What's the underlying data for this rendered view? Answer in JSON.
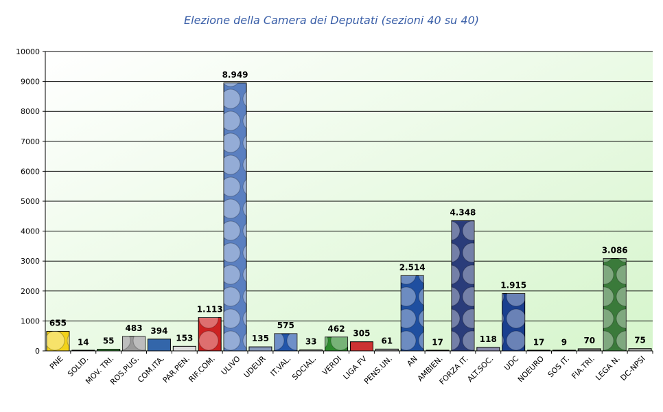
{
  "chart_data": {
    "type": "bar",
    "title": "Elezione della Camera dei Deputati (sezioni 40 su 40)",
    "xlabel": "",
    "ylabel": "",
    "ylim": [
      0,
      10000
    ],
    "yticks": [
      0,
      1000,
      2000,
      3000,
      4000,
      5000,
      6000,
      7000,
      8000,
      9000,
      10000
    ],
    "grid": true,
    "categories": [
      "PNE",
      "SOLID.",
      "MOV. TRI.",
      "ROS.PUG.",
      "COM.ITA.",
      "PAR.PEN.",
      "RIF.COM.",
      "ULIVO",
      "UDEUR",
      "IT.VAL.",
      "SOCIAL.",
      "VERDI",
      "LIGA FV",
      "PENS.UN.",
      "AN",
      "AMBIEN.",
      "FORZA IT.",
      "ALT.SOC.",
      "UDC",
      "NOEURO",
      "SOS IT.",
      "FIA.TRI.",
      "LEGA N.",
      "DC-NPSI"
    ],
    "values": [
      655,
      14,
      55,
      483,
      394,
      153,
      1113,
      8949,
      135,
      575,
      33,
      462,
      305,
      61,
      2514,
      17,
      4348,
      118,
      1915,
      17,
      9,
      70,
      3086,
      75
    ],
    "data_labels": [
      "655",
      "14",
      "55",
      "483",
      "394",
      "153",
      "1.113",
      "8.949",
      "135",
      "575",
      "33",
      "462",
      "305",
      "61",
      "2.514",
      "17",
      "4.348",
      "118",
      "1.915",
      "17",
      "9",
      "70",
      "3.086",
      "75"
    ],
    "bar_colors": [
      "#f2d21a",
      "#c8c8c8",
      "#3a8a3a",
      "#9a9a9a",
      "#3366aa",
      "#dddddd",
      "#cc2222",
      "#5a7fc0",
      "#8899bb",
      "#2255aa",
      "#888888",
      "#2e8b2e",
      "#cc3333",
      "#999999",
      "#1f4fa0",
      "#777777",
      "#2a3c7a",
      "#8888aa",
      "#1a3f8f",
      "#666666",
      "#555555",
      "#777777",
      "#3a7a3a",
      "#aaaaaa"
    ],
    "plot_background": [
      "#ffffff",
      "#d6f5cc"
    ]
  }
}
